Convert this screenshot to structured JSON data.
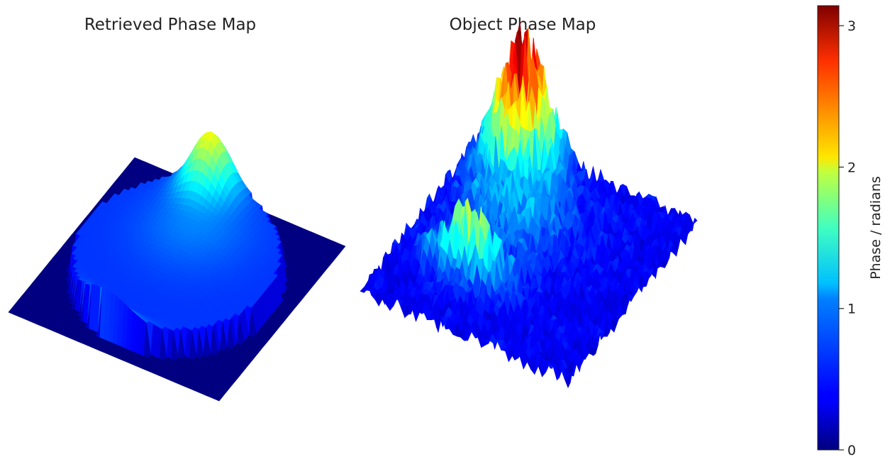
{
  "chart_data": [
    {
      "type": "surface3d",
      "title": "Retrieved Phase Map",
      "colormap": "jet",
      "zlim": [
        0,
        3.14159
      ],
      "features": [
        {
          "kind": "flat-base",
          "value": 0.0
        },
        {
          "kind": "raised-disk",
          "value": 0.55
        },
        {
          "kind": "peak",
          "value": 1.85
        },
        {
          "kind": "crescent-rim",
          "value": 1.15
        }
      ]
    },
    {
      "type": "surface3d",
      "title": "Object Phase Map",
      "colormap": "jet",
      "zlim": [
        0,
        3.14159
      ],
      "features": [
        {
          "kind": "noisy-plane",
          "value": 0.35
        },
        {
          "kind": "central-peak",
          "value": 2.8
        },
        {
          "kind": "secondary-ridge",
          "value": 1.5
        }
      ]
    },
    {
      "type": "colorbar",
      "label": "Phase / radians",
      "colormap": "jet",
      "range": [
        0,
        3.14159
      ],
      "ticks": [
        0,
        1,
        2,
        3
      ],
      "tick_labels": [
        "0",
        "1",
        "2",
        "3"
      ]
    }
  ]
}
